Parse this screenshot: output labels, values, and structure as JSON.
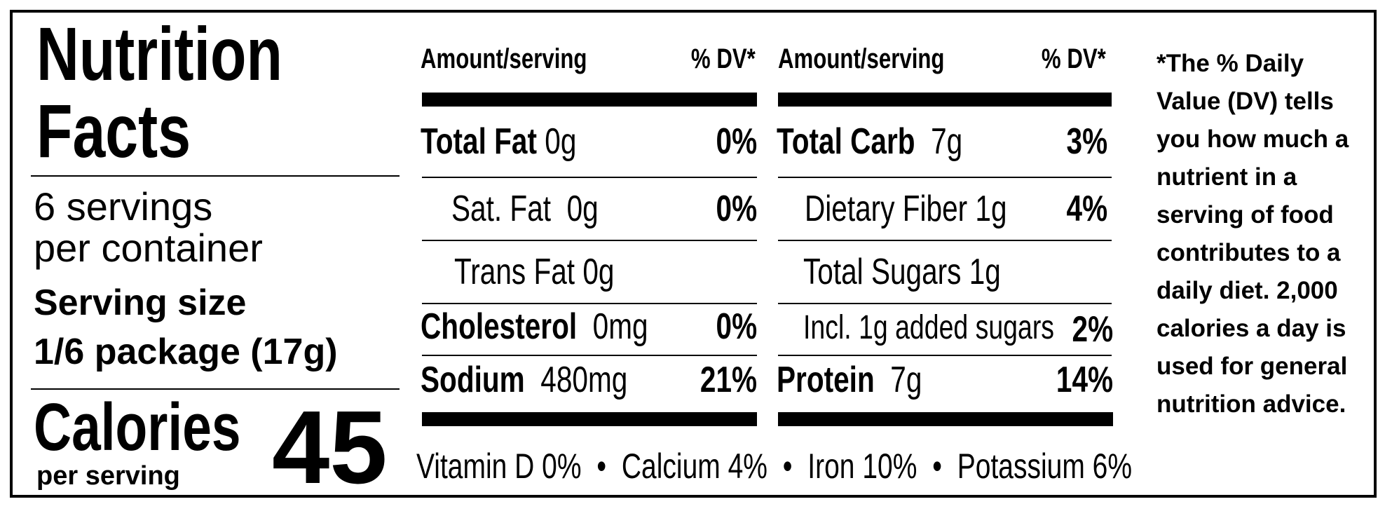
{
  "title_line1": "Nutrition",
  "title_line2": "Facts",
  "servings_line1": "6 servings",
  "servings_line2": "per container",
  "serving_size_label": "Serving size",
  "serving_size_value": "1/6 package (17g)",
  "calories_label": "Calories",
  "per_serving": "per serving",
  "calories_value": "45",
  "left_table": {
    "header_amount": "Amount/serving",
    "header_dv": "% DV*",
    "rows": [
      {
        "name": "Total Fat",
        "amount": "0g",
        "dv": "0%"
      },
      {
        "name": "Sat. Fat",
        "amount": "0g",
        "dv": "0%"
      },
      {
        "name": "Trans Fat",
        "amount": "0g",
        "dv": ""
      },
      {
        "name": "Cholesterol",
        "amount": "0mg",
        "dv": "0%"
      },
      {
        "name": "Sodium",
        "amount": "480mg",
        "dv": "21%"
      }
    ]
  },
  "right_table": {
    "header_amount": "Amount/serving",
    "header_dv": "% DV*",
    "rows": [
      {
        "name": "Total Carb",
        "amount": "7g",
        "dv": "3%"
      },
      {
        "name": "Dietary Fiber",
        "amount": "1g",
        "dv": "4%"
      },
      {
        "name": "Total Sugars",
        "amount": "1g",
        "dv": ""
      },
      {
        "name": "Incl. 1g added sugars",
        "amount": "",
        "dv": "2%"
      },
      {
        "name": "Protein",
        "amount": "7g",
        "dv": "14%"
      }
    ]
  },
  "footnote": "*The % Daily Value (DV) tells you how much a nutrient in a serving of food contributes to a daily diet. 2,000 calories a day is used for general nutrition advice.",
  "vitamins": {
    "vitamin_d": "Vitamin D 0%",
    "calcium": "Calcium 4%",
    "iron": "Iron 10%",
    "potassium": "Potassium 6%",
    "separator": "•"
  }
}
